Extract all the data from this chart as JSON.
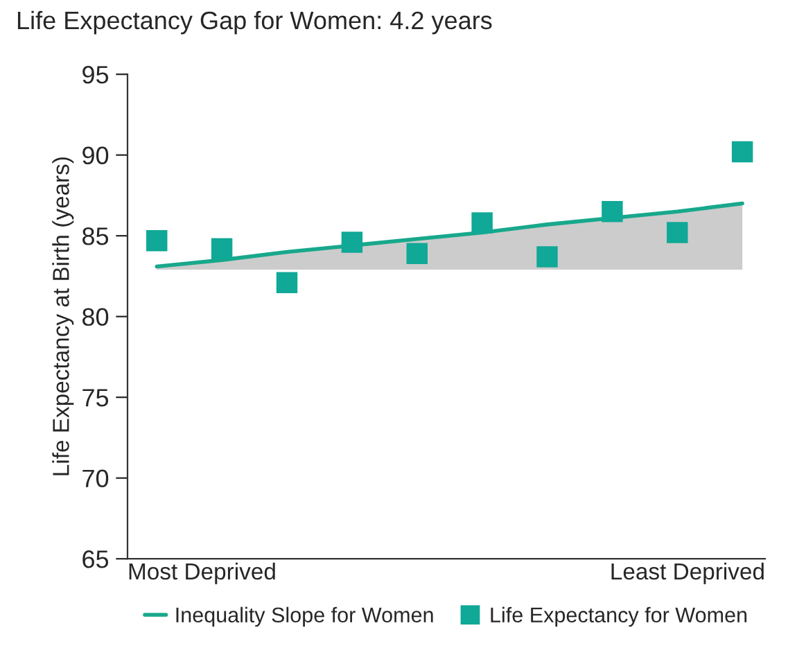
{
  "chart_data": {
    "type": "scatter",
    "title": "Life Expectancy Gap for Women: 4.2 years",
    "ylabel": "Life Expectancy at Birth (years)",
    "categories": [
      null,
      null,
      null,
      null,
      null,
      null,
      null,
      null,
      null,
      null
    ],
    "annotations": [
      "Most Deprived",
      "Least Deprived"
    ],
    "ylim": [
      65,
      95
    ],
    "yticks": [
      65,
      70,
      75,
      80,
      85,
      90,
      95
    ],
    "grid": false,
    "legend": "bottom",
    "series": [
      {
        "name": "Inequality Slope for Women",
        "type": "line",
        "color": "#18a88c",
        "values": [
          83.1,
          83.5,
          84.0,
          84.4,
          84.8,
          85.2,
          85.7,
          86.1,
          86.5,
          87.0
        ],
        "lower": [
          82.9,
          82.9,
          82.9,
          82.9,
          82.9,
          82.9,
          82.9,
          82.9,
          82.9,
          82.9
        ],
        "upper": [
          83.1,
          83.5,
          84.0,
          84.4,
          84.8,
          85.2,
          85.7,
          86.1,
          86.5,
          87.0
        ],
        "line_style": "solid"
      },
      {
        "name": "Life Expectancy for Women",
        "color": "#10a896",
        "marker": "square",
        "values": [
          84.7,
          84.2,
          82.1,
          84.6,
          83.9,
          85.8,
          83.7,
          86.5,
          85.2,
          90.2
        ]
      }
    ]
  }
}
